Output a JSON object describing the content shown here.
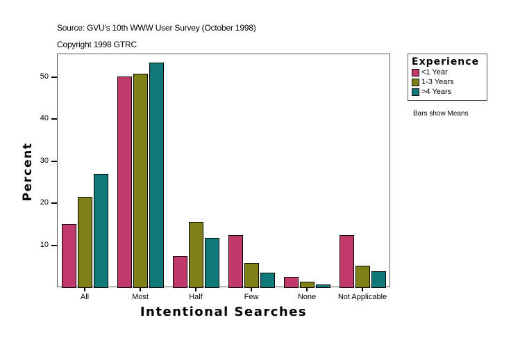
{
  "header": {
    "source": "Source: GVU's 10th WWW User Survey (October 1998)",
    "copyright": "Copyright 1998 GTRC"
  },
  "legend": {
    "title": "Experience",
    "items": [
      {
        "label": "<1 Year",
        "color": "#C0396A"
      },
      {
        "label": "1-3 Years",
        "color": "#808018"
      },
      {
        "label": ">4 Years",
        "color": "#107878"
      }
    ]
  },
  "note": "Bars show Means",
  "chart_data": {
    "type": "bar",
    "title": "",
    "xlabel": "Intentional Searches",
    "ylabel": "Percent",
    "categories": [
      "All",
      "Most",
      "Half",
      "Few",
      "None",
      "Not Applicable"
    ],
    "series": [
      {
        "name": "<1 Year",
        "color": "#C0396A",
        "values": [
          15.0,
          50.0,
          7.4,
          12.4,
          2.5,
          12.4
        ]
      },
      {
        "name": "1-3 Years",
        "color": "#808018",
        "values": [
          21.5,
          50.7,
          15.5,
          5.8,
          1.3,
          5.1
        ]
      },
      {
        "name": ">4 Years",
        "color": "#107878",
        "values": [
          27.0,
          53.4,
          11.7,
          3.5,
          0.7,
          3.8
        ]
      }
    ],
    "yticks": [
      10,
      20,
      30,
      40,
      50
    ],
    "ylim": [
      0,
      55.5
    ],
    "grid": false,
    "legend_position": "right"
  }
}
